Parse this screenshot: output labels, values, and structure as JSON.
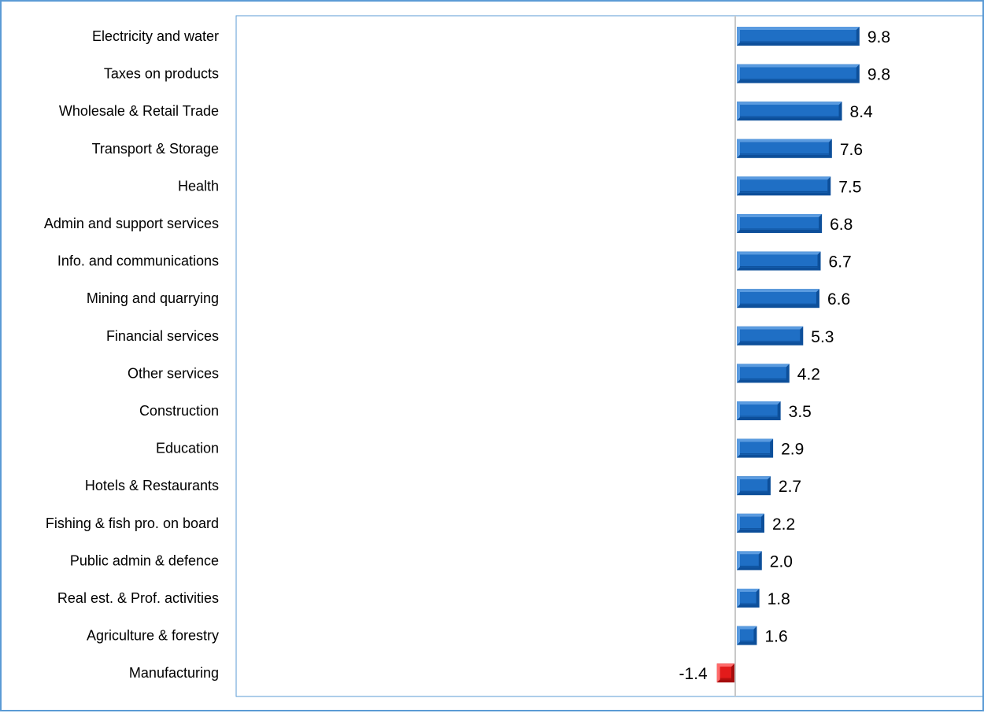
{
  "chart_data": {
    "type": "bar",
    "orientation": "horizontal",
    "categories": [
      "Electricity and water",
      "Taxes on products",
      "Wholesale & Retail Trade",
      "Transport & Storage",
      "Health",
      "Admin and support services",
      "Info. and communications",
      "Mining and quarrying",
      "Financial services",
      "Other services ",
      "Construction",
      "Education",
      "Hotels & Restaurants",
      "Fishing & fish pro. on board",
      "Public admin & defence",
      "Real est. & Prof. activities",
      "Agriculture & forestry",
      "Manufacturing"
    ],
    "values": [
      9.8,
      9.8,
      8.4,
      7.6,
      7.5,
      6.8,
      6.7,
      6.6,
      5.3,
      4.2,
      3.5,
      2.9,
      2.7,
      2.2,
      2.0,
      1.8,
      1.6,
      -1.4
    ],
    "value_labels": [
      "9.8",
      "9.8",
      "8.4",
      "7.6",
      "7.5",
      "6.8",
      "6.7",
      "6.6",
      "5.3",
      "4.2",
      "3.5",
      "2.9",
      "2.7",
      "2.2",
      "2.0",
      "1.8",
      "1.6",
      "-1.4"
    ],
    "title": "",
    "xlabel": "",
    "ylabel": "",
    "grid": false,
    "legend": "none",
    "colors": {
      "positive": "#1f6fc5",
      "positive_dark": "#0d4f9a",
      "positive_light": "#5a9be0",
      "negative": "#e31b1b",
      "negative_dark": "#a50d0d",
      "negative_light": "#ff6a6a",
      "axis_line": "#c8c8c8",
      "plot_border": "#5b9bd5",
      "outer_border": "#5b9bd5"
    }
  }
}
